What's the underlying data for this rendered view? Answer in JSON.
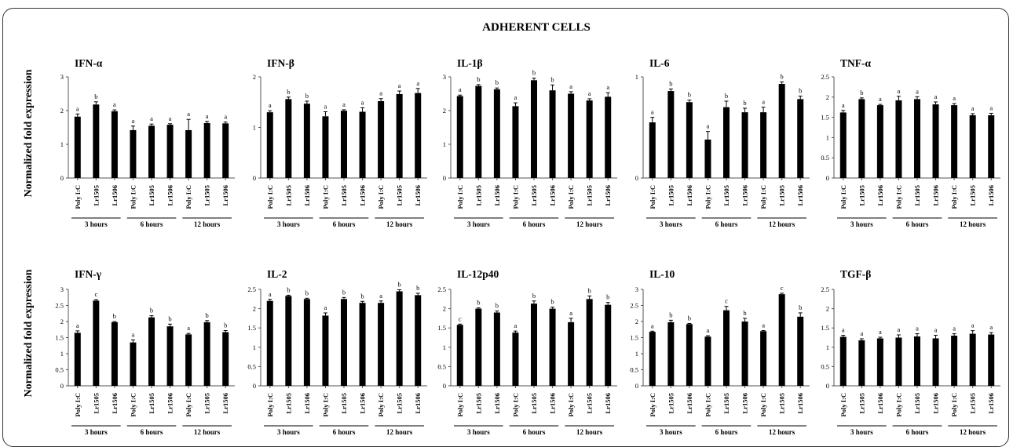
{
  "title": "ADHERENT CELLS",
  "ylabel": "Normalized fold expression",
  "colors": {
    "bar": "#000000",
    "axis": "#555555",
    "border": "#333333"
  },
  "chart_data": [
    {
      "type": "bar",
      "title": "IFN-α",
      "ylim": [
        0,
        3
      ],
      "yticks": [
        "0",
        "1",
        "2",
        "3"
      ],
      "categories": [
        "Poly I:C",
        "Lr1505",
        "Lr1506",
        "Poly I:C",
        "Lr1505",
        "Lr1506",
        "Poly I:C",
        "Lr1505",
        "Lr1506"
      ],
      "groups": [
        "3 hours",
        "6 hours",
        "12 hours"
      ],
      "values": [
        1.82,
        2.18,
        1.98,
        1.42,
        1.55,
        1.58,
        1.42,
        1.63,
        1.62
      ],
      "errors": [
        0.08,
        0.08,
        0.04,
        0.12,
        0.05,
        0.03,
        0.32,
        0.05,
        0.04
      ],
      "labels": [
        "a",
        "b",
        "a",
        "a",
        "a",
        "a",
        "a",
        "a",
        "a"
      ]
    },
    {
      "type": "bar",
      "title": "IFN-β",
      "ylim": [
        0,
        2
      ],
      "yticks": [
        "0",
        "1",
        "2"
      ],
      "categories": [
        "Poly I:C",
        "Lr1505",
        "Lr1506",
        "Poly I:C",
        "Lr1505",
        "Lr1506",
        "Poly I:C",
        "Lr1505",
        "Lr1506"
      ],
      "groups": [
        "3 hours",
        "6 hours",
        "12 hours"
      ],
      "values": [
        1.3,
        1.56,
        1.47,
        1.22,
        1.33,
        1.31,
        1.52,
        1.66,
        1.68
      ],
      "errors": [
        0.03,
        0.04,
        0.05,
        0.09,
        0.02,
        0.08,
        0.05,
        0.06,
        0.09
      ],
      "labels": [
        "a",
        "b",
        "b",
        "a",
        "a",
        "a",
        "a",
        "a",
        "a"
      ]
    },
    {
      "type": "bar",
      "title": "IL-1β",
      "ylim": [
        0,
        3
      ],
      "yticks": [
        "0",
        "1",
        "2",
        "3"
      ],
      "categories": [
        "Poly I:C",
        "Lr1505",
        "Lr1506",
        "Poly I:C",
        "Lr1505",
        "Lr1506",
        "Poly I:C",
        "Lr1505",
        "Lr1506"
      ],
      "groups": [
        "3 hours",
        "6 hours",
        "12 hours"
      ],
      "values": [
        2.43,
        2.73,
        2.63,
        2.13,
        2.9,
        2.6,
        2.5,
        2.3,
        2.41
      ],
      "errors": [
        0.03,
        0.04,
        0.04,
        0.1,
        0.06,
        0.16,
        0.06,
        0.05,
        0.12
      ],
      "labels": [
        "a",
        "b",
        "b",
        "a",
        "b",
        "b",
        "a",
        "a",
        "a"
      ]
    },
    {
      "type": "bar",
      "title": "IL-6",
      "ylim": [
        0,
        1
      ],
      "yticks": [
        "0",
        "1"
      ],
      "categories": [
        "Poly I:C",
        "Lr1505",
        "Lr1506",
        "Poly I:C",
        "Lr1505",
        "Lr1506",
        "Poly I:C",
        "Lr1505",
        "Lr1506"
      ],
      "groups": [
        "3 hours",
        "6 hours",
        "12 hours"
      ],
      "values": [
        0.55,
        0.86,
        0.75,
        0.38,
        0.7,
        0.65,
        0.65,
        0.93,
        0.78
      ],
      "errors": [
        0.05,
        0.02,
        0.02,
        0.08,
        0.06,
        0.04,
        0.05,
        0.02,
        0.03
      ],
      "labels": [
        "a",
        "b",
        "b",
        "a",
        "b",
        "b",
        "a",
        "b",
        "b"
      ]
    },
    {
      "type": "bar",
      "title": "TNF-α",
      "ylim": [
        0,
        2.5
      ],
      "yticks": [
        "0",
        "0.5",
        "1",
        "1.5",
        "2",
        "2.5"
      ],
      "categories": [
        "Poly I:C",
        "Lr1505",
        "Lr1506",
        "Poly I:C",
        "Lr1505",
        "Lr1506",
        "Poly I:C",
        "Lr1505",
        "Lr1506"
      ],
      "groups": [
        "3 hours",
        "6 hours",
        "12 hours"
      ],
      "values": [
        1.62,
        1.95,
        1.8,
        1.92,
        1.95,
        1.82,
        1.8,
        1.55,
        1.55
      ],
      "errors": [
        0.05,
        0.03,
        0.02,
        0.1,
        0.06,
        0.06,
        0.04,
        0.04,
        0.05
      ],
      "labels": [
        "a",
        "b",
        "a",
        "a",
        "a",
        "a",
        "a",
        "a",
        "a"
      ]
    },
    {
      "type": "bar",
      "title": "IFN-γ",
      "ylim": [
        0,
        3
      ],
      "yticks": [
        "0",
        "0.5",
        "1",
        "1.5",
        "2",
        "2.5",
        "3"
      ],
      "categories": [
        "Poly I:C",
        "Lr1505",
        "Lr1506",
        "Poly I:C",
        "Lr1505",
        "Lr1506",
        "Poly I:C",
        "Lr1505",
        "Lr1506"
      ],
      "groups": [
        "3 hours",
        "6 hours",
        "12 hours"
      ],
      "values": [
        1.65,
        2.65,
        1.98,
        1.35,
        2.13,
        1.85,
        1.6,
        1.98,
        1.67
      ],
      "errors": [
        0.06,
        0.03,
        0.02,
        0.08,
        0.05,
        0.07,
        0.03,
        0.05,
        0.05
      ],
      "labels": [
        "a",
        "c",
        "b",
        "a",
        "b",
        "b",
        "a",
        "b",
        "b"
      ]
    },
    {
      "type": "bar",
      "title": "IL-2",
      "ylim": [
        0,
        2.5
      ],
      "yticks": [
        "0",
        "0.5",
        "1",
        "1.5",
        "2",
        "2.5"
      ],
      "categories": [
        "Poly I:C",
        "Lr1505",
        "Lr1506",
        "Poly I:C",
        "Lr1505",
        "Lr1506",
        "Poly I:C",
        "Lr1505",
        "Lr1506"
      ],
      "groups": [
        "3 hours",
        "6 hours",
        "12 hours"
      ],
      "values": [
        2.2,
        2.33,
        2.25,
        1.82,
        2.25,
        2.15,
        2.15,
        2.45,
        2.35
      ],
      "errors": [
        0.04,
        0.02,
        0.02,
        0.07,
        0.04,
        0.04,
        0.05,
        0.04,
        0.05
      ],
      "labels": [
        "a",
        "b",
        "b",
        "a",
        "b",
        "b",
        "a",
        "b",
        "b"
      ]
    },
    {
      "type": "bar",
      "title": "IL-12p40",
      "ylim": [
        0,
        2.5
      ],
      "yticks": [
        "0",
        "0.5",
        "1",
        "1.5",
        "2",
        "2.5"
      ],
      "categories": [
        "Poly I:C",
        "Lr1505",
        "Lr1506",
        "Poly I:C",
        "Lr1505",
        "Lr1506",
        "Poly I:C",
        "Lr1505",
        "Lr1506"
      ],
      "groups": [
        "3 hours",
        "6 hours",
        "12 hours"
      ],
      "values": [
        1.58,
        2.0,
        1.9,
        1.38,
        2.13,
        2.0,
        1.65,
        2.25,
        2.1
      ],
      "errors": [
        0.02,
        0.02,
        0.04,
        0.04,
        0.07,
        0.04,
        0.1,
        0.08,
        0.06
      ],
      "labels": [
        "c",
        "b",
        "b",
        "a",
        "b",
        "b",
        "a",
        "b",
        "b"
      ]
    },
    {
      "type": "bar",
      "title": "IL-10",
      "ylim": [
        0,
        3
      ],
      "yticks": [
        "0",
        "0.5",
        "1",
        "1.5",
        "2",
        "2.5",
        "3"
      ],
      "categories": [
        "Poly I:C",
        "Lr1505",
        "Lr1506",
        "Poly I:C",
        "Lr1505",
        "Lr1506",
        "Poly I:C",
        "Lr1505",
        "Lr1506"
      ],
      "groups": [
        "3 hours",
        "6 hours",
        "12 hours"
      ],
      "values": [
        1.68,
        1.98,
        1.92,
        1.53,
        2.35,
        2.0,
        1.7,
        2.85,
        2.15
      ],
      "errors": [
        0.02,
        0.06,
        0.02,
        0.03,
        0.12,
        0.1,
        0.02,
        0.03,
        0.12
      ],
      "labels": [
        "a",
        "b",
        "b",
        "a",
        "c",
        "b",
        "a",
        "c",
        "b"
      ]
    },
    {
      "type": "bar",
      "title": "TGF-β",
      "ylim": [
        0,
        2.5
      ],
      "yticks": [
        "0",
        "0.5",
        "1",
        "1.5",
        "2",
        "2.5"
      ],
      "categories": [
        "Poly I:C",
        "Lr1505",
        "Lr1506",
        "Poly I:C",
        "Lr1505",
        "Lr1506",
        "Poly I:C",
        "Lr1505",
        "Lr1506"
      ],
      "groups": [
        "3 hours",
        "6 hours",
        "12 hours"
      ],
      "values": [
        1.27,
        1.18,
        1.23,
        1.25,
        1.28,
        1.23,
        1.3,
        1.35,
        1.33
      ],
      "errors": [
        0.04,
        0.04,
        0.03,
        0.07,
        0.07,
        0.08,
        0.05,
        0.08,
        0.05
      ],
      "labels": [
        "a",
        "a",
        "a",
        "a",
        "a",
        "a",
        "a",
        "a",
        "a"
      ]
    }
  ]
}
